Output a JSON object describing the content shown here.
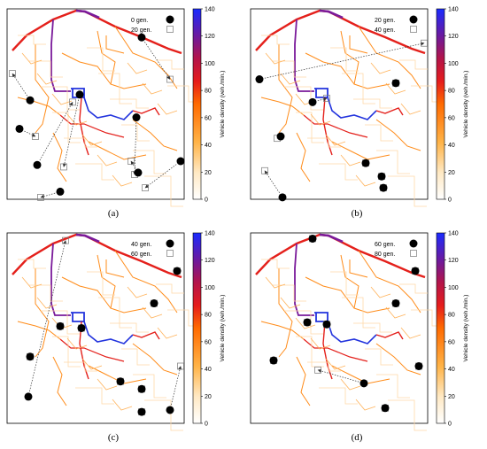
{
  "chart_data": [
    {
      "type": "scatter",
      "panel_label": "(a)",
      "legend": {
        "placement": "top-right",
        "entries": [
          "0 gen.",
          "20 gen."
        ]
      },
      "colorbar": {
        "label": "Vehicle density (veh./min.)",
        "ticks": [
          0,
          20,
          40,
          60,
          80,
          100,
          120,
          140
        ],
        "range": [
          0,
          140
        ]
      },
      "moves": [
        {
          "from": [
            0.76,
            0.85
          ],
          "to": [
            0.92,
            0.63
          ]
        },
        {
          "from": [
            0.41,
            0.55
          ],
          "to": [
            0.32,
            0.17
          ]
        },
        {
          "from": [
            0.13,
            0.52
          ],
          "to": [
            0.03,
            0.66
          ]
        },
        {
          "from": [
            0.07,
            0.37
          ],
          "to": [
            0.16,
            0.33
          ]
        },
        {
          "from": [
            0.17,
            0.18
          ],
          "to": [
            0.37,
            0.51
          ]
        },
        {
          "from": [
            0.3,
            0.04
          ],
          "to": [
            0.19,
            0.01
          ]
        },
        {
          "from": [
            0.73,
            0.43
          ],
          "to": [
            0.72,
            0.13
          ]
        },
        {
          "from": [
            0.98,
            0.2
          ],
          "to": [
            0.78,
            0.06
          ]
        },
        {
          "from": [
            0.74,
            0.14
          ],
          "to": [
            0.7,
            0.2
          ]
        }
      ]
    },
    {
      "type": "scatter",
      "panel_label": "(b)",
      "legend": {
        "placement": "top-right",
        "entries": [
          "20 gen.",
          "40 gen."
        ]
      },
      "colorbar": {
        "label": "Vehicle density (veh./min.)",
        "ticks": [
          0,
          20,
          40,
          60,
          80,
          100,
          120,
          140
        ],
        "range": [
          0,
          140
        ]
      },
      "moves": [
        {
          "from": [
            0.05,
            0.63
          ],
          "to": [
            0.98,
            0.82
          ]
        },
        {
          "from": [
            0.35,
            0.51
          ],
          "to": [
            0.43,
            0.53
          ]
        },
        {
          "from": [
            0.17,
            0.33
          ],
          "to": [
            0.15,
            0.32
          ]
        },
        {
          "from": [
            0.18,
            0.01
          ],
          "to": [
            0.08,
            0.15
          ]
        },
        {
          "from": [
            0.82,
            0.61
          ],
          "to": [
            0.82,
            0.61
          ]
        },
        {
          "from": [
            0.65,
            0.19
          ],
          "to": [
            0.65,
            0.19
          ]
        },
        {
          "from": [
            0.74,
            0.12
          ],
          "to": [
            0.74,
            0.12
          ]
        },
        {
          "from": [
            0.75,
            0.06
          ],
          "to": [
            0.75,
            0.06
          ]
        }
      ]
    },
    {
      "type": "scatter",
      "panel_label": "(c)",
      "legend": {
        "placement": "top-right",
        "entries": [
          "40 gen.",
          "60 gen."
        ]
      },
      "colorbar": {
        "label": "Vehicle density (veh./min.)",
        "ticks": [
          0,
          20,
          40,
          60,
          80,
          100,
          120,
          140
        ],
        "range": [
          0,
          140
        ]
      },
      "moves": [
        {
          "from": [
            0.12,
            0.14
          ],
          "to": [
            0.33,
            0.96
          ]
        },
        {
          "from": [
            0.92,
            0.07
          ],
          "to": [
            0.98,
            0.3
          ]
        },
        {
          "from": [
            0.3,
            0.51
          ],
          "to": [
            0.3,
            0.51
          ]
        },
        {
          "from": [
            0.42,
            0.5
          ],
          "to": [
            0.42,
            0.5
          ]
        },
        {
          "from": [
            0.13,
            0.35
          ],
          "to": [
            0.13,
            0.35
          ]
        },
        {
          "from": [
            0.83,
            0.63
          ],
          "to": [
            0.83,
            0.63
          ]
        },
        {
          "from": [
            0.64,
            0.22
          ],
          "to": [
            0.64,
            0.22
          ]
        },
        {
          "from": [
            0.76,
            0.18
          ],
          "to": [
            0.76,
            0.18
          ]
        },
        {
          "from": [
            0.76,
            0.06
          ],
          "to": [
            0.76,
            0.06
          ]
        },
        {
          "from": [
            0.96,
            0.8
          ],
          "to": [
            0.96,
            0.8
          ]
        }
      ]
    },
    {
      "type": "scatter",
      "panel_label": "(d)",
      "legend": {
        "placement": "top-right",
        "entries": [
          "60 gen.",
          "80 gen."
        ]
      },
      "colorbar": {
        "label": "Vehicle density (veh./min.)",
        "ticks": [
          0,
          20,
          40,
          60,
          80,
          100,
          120,
          140
        ],
        "range": [
          0,
          140
        ]
      },
      "moves": [
        {
          "from": [
            0.13,
            0.33
          ],
          "to": [
            0.13,
            0.33
          ]
        },
        {
          "from": [
            0.32,
            0.53
          ],
          "to": [
            0.32,
            0.53
          ]
        },
        {
          "from": [
            0.43,
            0.52
          ],
          "to": [
            0.43,
            0.52
          ]
        },
        {
          "from": [
            0.35,
            0.97
          ],
          "to": [
            0.35,
            0.97
          ]
        },
        {
          "from": [
            0.82,
            0.63
          ],
          "to": [
            0.82,
            0.63
          ]
        },
        {
          "from": [
            0.93,
            0.8
          ],
          "to": [
            0.93,
            0.8
          ]
        },
        {
          "from": [
            0.95,
            0.3
          ],
          "to": [
            0.95,
            0.3
          ]
        },
        {
          "from": [
            0.64,
            0.21
          ],
          "to": [
            0.38,
            0.28
          ]
        },
        {
          "from": [
            0.76,
            0.08
          ],
          "to": [
            0.76,
            0.08
          ]
        }
      ]
    }
  ]
}
